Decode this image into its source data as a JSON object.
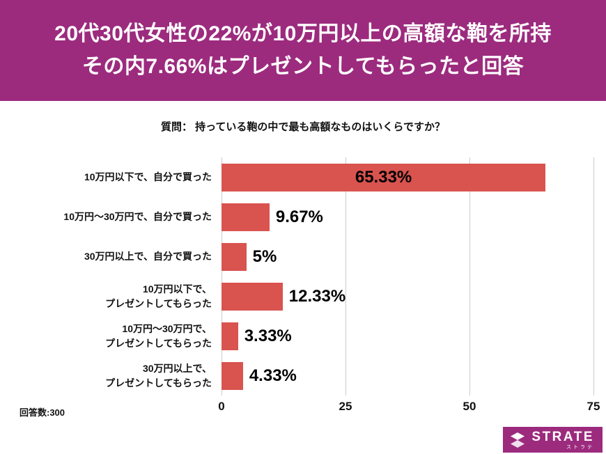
{
  "header": {
    "line1": "20代30代女性の22%が10万円以上の高額な鞄を所持",
    "line2": "その内7.66%はプレゼントしてもらったと回答"
  },
  "question": "質問： 持っている鞄の中で最も高額なものはいくらですか？",
  "chart_data": {
    "type": "bar",
    "orientation": "horizontal",
    "title": "持っている鞄の中で最も高額なものはいくらですか？",
    "categories": [
      "10万円以下で、自分で買った",
      "10万円～30万円で、自分で買った",
      "30万円以上で、自分で買った",
      "10万円以下で、\nプレゼントしてもらった",
      "10万円～30万円で、\nプレゼントしてもらった",
      "30万円以上で、\nプレゼントしてもらった"
    ],
    "values": [
      65.33,
      9.67,
      5,
      12.33,
      3.33,
      4.33
    ],
    "value_labels": [
      "65.33%",
      "9.67%",
      "5%",
      "12.33%",
      "3.33%",
      "4.33%"
    ],
    "xlim": [
      0,
      75
    ],
    "x_ticks": [
      0,
      25,
      50,
      75
    ],
    "grid": true,
    "legend": "none",
    "inside_label_threshold": 30
  },
  "footer": {
    "respondents": "回答数:300"
  },
  "logo": {
    "name": "STRATE",
    "subtitle": "ストラテ"
  },
  "colors": {
    "banner": "#9c2b7e",
    "bar": "#d9534f",
    "grid": "#cccccc",
    "header_text": "#ffffff",
    "value_text": "#000000"
  }
}
